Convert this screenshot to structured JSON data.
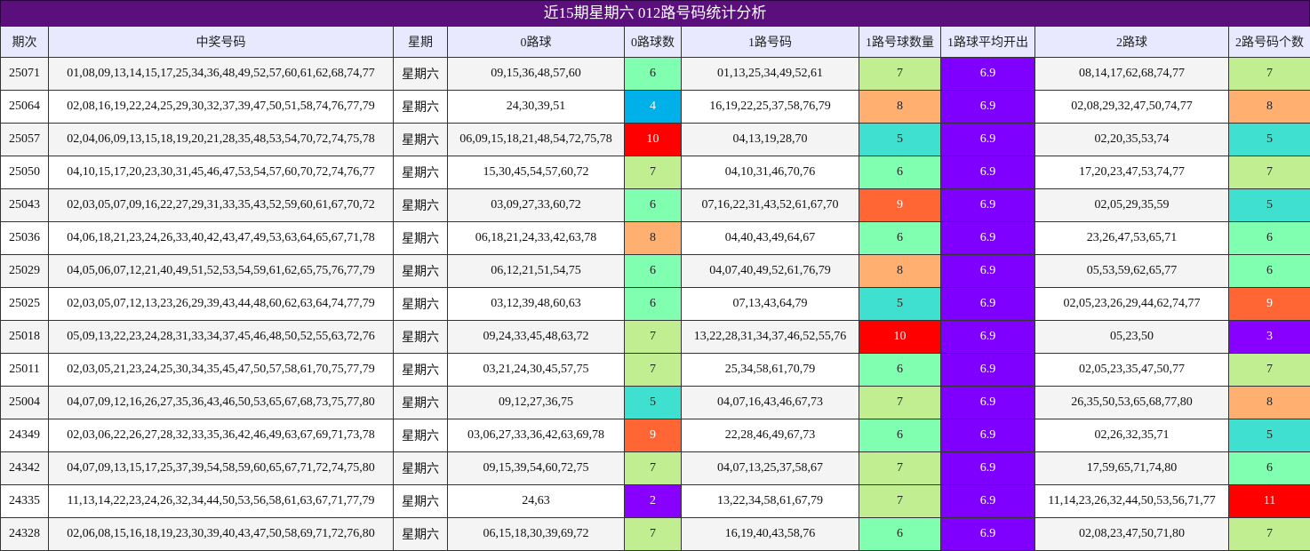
{
  "title": "近15期星期六 012路号码统计分析",
  "headers": [
    "期次",
    "中奖号码",
    "星期",
    "0路球",
    "0路球数",
    "1路号码",
    "1路号球数量",
    "1路球平均开出",
    "2路球",
    "2路号码个数"
  ],
  "colors": {
    "c2": "#8800ff",
    "c3": "#8800ff",
    "c4": "#00b0e8",
    "c5": "#40e0d0",
    "c6": "#80ffb0",
    "c7": "#c0ee90",
    "c8": "#ffb070",
    "c9": "#ff6633",
    "c10": "#ff0000",
    "c11": "#ff0000",
    "avg": "#7f00ff"
  },
  "rows": [
    {
      "issue": "25071",
      "numbers": "01,08,09,13,14,15,17,25,34,36,48,49,52,57,60,61,62,68,74,77",
      "weekday": "星期六",
      "r0": "09,15,36,48,57,60",
      "r0c": "6",
      "r1": "01,13,25,34,49,52,61",
      "r1c": "7",
      "avg": "6.9",
      "r2": "08,14,17,62,68,74,77",
      "r2c": "7"
    },
    {
      "issue": "25064",
      "numbers": "02,08,16,19,22,24,25,29,30,32,37,39,47,50,51,58,74,76,77,79",
      "weekday": "星期六",
      "r0": "24,30,39,51",
      "r0c": "4",
      "r1": "16,19,22,25,37,58,76,79",
      "r1c": "8",
      "avg": "6.9",
      "r2": "02,08,29,32,47,50,74,77",
      "r2c": "8"
    },
    {
      "issue": "25057",
      "numbers": "02,04,06,09,13,15,18,19,20,21,28,35,48,53,54,70,72,74,75,78",
      "weekday": "星期六",
      "r0": "06,09,15,18,21,48,54,72,75,78",
      "r0c": "10",
      "r1": "04,13,19,28,70",
      "r1c": "5",
      "avg": "6.9",
      "r2": "02,20,35,53,74",
      "r2c": "5"
    },
    {
      "issue": "25050",
      "numbers": "04,10,15,17,20,23,30,31,45,46,47,53,54,57,60,70,72,74,76,77",
      "weekday": "星期六",
      "r0": "15,30,45,54,57,60,72",
      "r0c": "7",
      "r1": "04,10,31,46,70,76",
      "r1c": "6",
      "avg": "6.9",
      "r2": "17,20,23,47,53,74,77",
      "r2c": "7"
    },
    {
      "issue": "25043",
      "numbers": "02,03,05,07,09,16,22,27,29,31,33,35,43,52,59,60,61,67,70,72",
      "weekday": "星期六",
      "r0": "03,09,27,33,60,72",
      "r0c": "6",
      "r1": "07,16,22,31,43,52,61,67,70",
      "r1c": "9",
      "avg": "6.9",
      "r2": "02,05,29,35,59",
      "r2c": "5"
    },
    {
      "issue": "25036",
      "numbers": "04,06,18,21,23,24,26,33,40,42,43,47,49,53,63,64,65,67,71,78",
      "weekday": "星期六",
      "r0": "06,18,21,24,33,42,63,78",
      "r0c": "8",
      "r1": "04,40,43,49,64,67",
      "r1c": "6",
      "avg": "6.9",
      "r2": "23,26,47,53,65,71",
      "r2c": "6"
    },
    {
      "issue": "25029",
      "numbers": "04,05,06,07,12,21,40,49,51,52,53,54,59,61,62,65,75,76,77,79",
      "weekday": "星期六",
      "r0": "06,12,21,51,54,75",
      "r0c": "6",
      "r1": "04,07,40,49,52,61,76,79",
      "r1c": "8",
      "avg": "6.9",
      "r2": "05,53,59,62,65,77",
      "r2c": "6"
    },
    {
      "issue": "25025",
      "numbers": "02,03,05,07,12,13,23,26,29,39,43,44,48,60,62,63,64,74,77,79",
      "weekday": "星期六",
      "r0": "03,12,39,48,60,63",
      "r0c": "6",
      "r1": "07,13,43,64,79",
      "r1c": "5",
      "avg": "6.9",
      "r2": "02,05,23,26,29,44,62,74,77",
      "r2c": "9"
    },
    {
      "issue": "25018",
      "numbers": "05,09,13,22,23,24,28,31,33,34,37,45,46,48,50,52,55,63,72,76",
      "weekday": "星期六",
      "r0": "09,24,33,45,48,63,72",
      "r0c": "7",
      "r1": "13,22,28,31,34,37,46,52,55,76",
      "r1c": "10",
      "avg": "6.9",
      "r2": "05,23,50",
      "r2c": "3"
    },
    {
      "issue": "25011",
      "numbers": "02,03,05,21,23,24,25,30,34,35,45,47,50,57,58,61,70,75,77,79",
      "weekday": "星期六",
      "r0": "03,21,24,30,45,57,75",
      "r0c": "7",
      "r1": "25,34,58,61,70,79",
      "r1c": "6",
      "avg": "6.9",
      "r2": "02,05,23,35,47,50,77",
      "r2c": "7"
    },
    {
      "issue": "25004",
      "numbers": "04,07,09,12,16,26,27,35,36,43,46,50,53,65,67,68,73,75,77,80",
      "weekday": "星期六",
      "r0": "09,12,27,36,75",
      "r0c": "5",
      "r1": "04,07,16,43,46,67,73",
      "r1c": "7",
      "avg": "6.9",
      "r2": "26,35,50,53,65,68,77,80",
      "r2c": "8"
    },
    {
      "issue": "24349",
      "numbers": "02,03,06,22,26,27,28,32,33,35,36,42,46,49,63,67,69,71,73,78",
      "weekday": "星期六",
      "r0": "03,06,27,33,36,42,63,69,78",
      "r0c": "9",
      "r1": "22,28,46,49,67,73",
      "r1c": "6",
      "avg": "6.9",
      "r2": "02,26,32,35,71",
      "r2c": "5"
    },
    {
      "issue": "24342",
      "numbers": "04,07,09,13,15,17,25,37,39,54,58,59,60,65,67,71,72,74,75,80",
      "weekday": "星期六",
      "r0": "09,15,39,54,60,72,75",
      "r0c": "7",
      "r1": "04,07,13,25,37,58,67",
      "r1c": "7",
      "avg": "6.9",
      "r2": "17,59,65,71,74,80",
      "r2c": "6"
    },
    {
      "issue": "24335",
      "numbers": "11,13,14,22,23,24,26,32,34,44,50,53,56,58,61,63,67,71,77,79",
      "weekday": "星期六",
      "r0": "24,63",
      "r0c": "2",
      "r1": "13,22,34,58,61,67,79",
      "r1c": "7",
      "avg": "6.9",
      "r2": "11,14,23,26,32,44,50,53,56,71,77",
      "r2c": "11"
    },
    {
      "issue": "24328",
      "numbers": "02,06,08,15,16,18,19,23,30,39,40,43,47,50,58,69,71,72,76,80",
      "weekday": "星期六",
      "r0": "06,15,18,30,39,69,72",
      "r0c": "7",
      "r1": "16,19,40,43,58,76",
      "r1c": "6",
      "avg": "6.9",
      "r2": "02,08,23,47,50,71,80",
      "r2c": "7"
    }
  ]
}
